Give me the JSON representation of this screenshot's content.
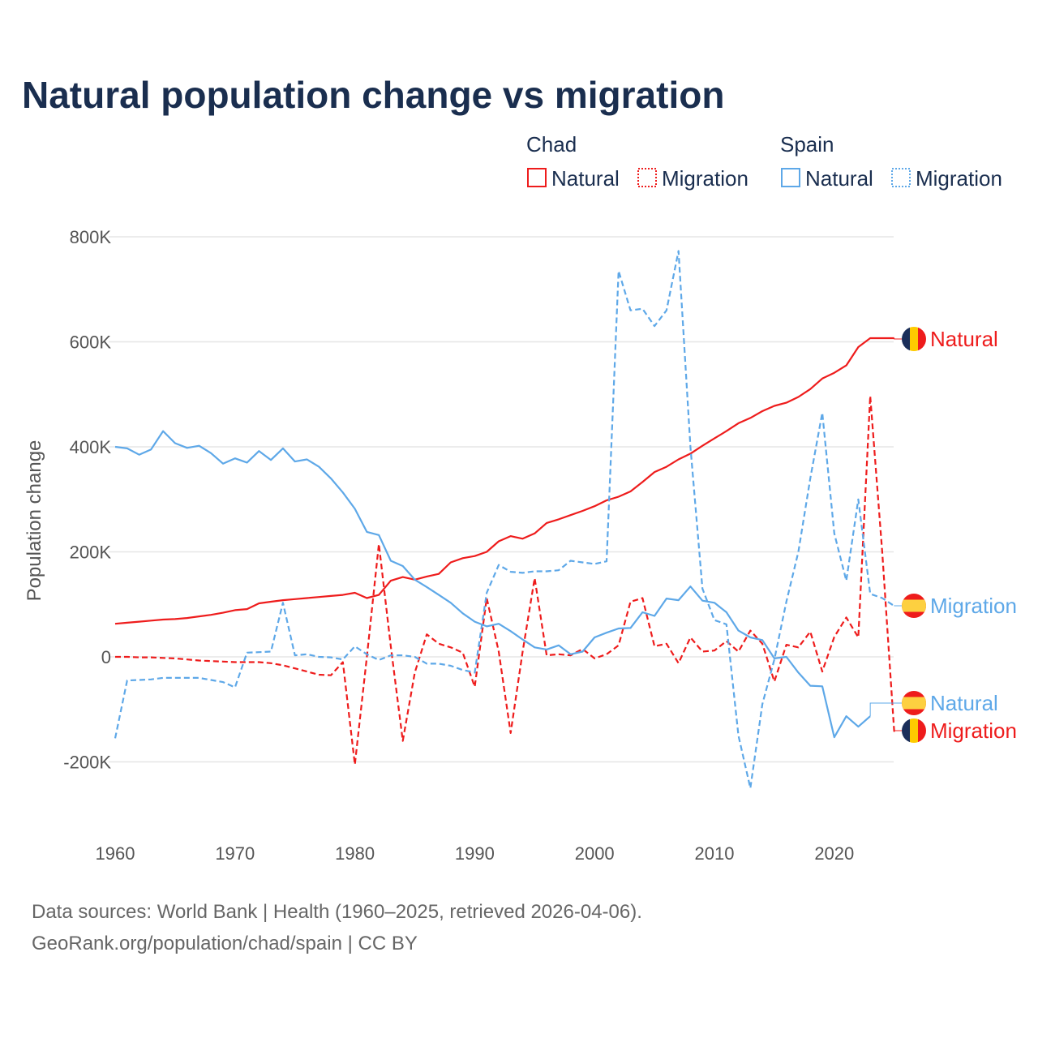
{
  "chart_data": {
    "type": "line",
    "title": "Natural population change vs migration",
    "ylabel": "Population change",
    "xlabel": "",
    "ylim": [
      -300000,
      800000
    ],
    "xlim": [
      1960,
      2025
    ],
    "y_ticks": [
      -200000,
      0,
      200000,
      400000,
      600000,
      800000
    ],
    "y_tick_labels": [
      "-200K",
      "0",
      "200K",
      "400K",
      "600K",
      "800K"
    ],
    "x_ticks": [
      1960,
      1970,
      1980,
      1990,
      2000,
      2010,
      2020
    ],
    "x_tick_labels": [
      "1960",
      "1970",
      "1980",
      "1990",
      "2000",
      "2010",
      "2020"
    ],
    "grid": true,
    "legend_placement": "top-right",
    "legend_groups": [
      {
        "name": "Chad",
        "items": [
          "Natural",
          "Migration"
        ]
      },
      {
        "name": "Spain",
        "items": [
          "Natural",
          "Migration"
        ]
      }
    ],
    "series": [
      {
        "name": "Chad Natural",
        "country": "Chad",
        "kind": "Natural",
        "label": "Natural",
        "color": "#ee1c1c",
        "dashed": false,
        "start_year": 1960,
        "values": [
          63,
          65,
          67,
          69,
          71,
          72,
          74,
          77,
          80,
          84,
          89,
          91,
          102,
          105,
          108,
          110,
          112,
          114,
          116,
          118,
          122,
          112,
          118,
          145,
          152,
          147,
          153,
          158,
          180,
          188,
          192,
          200,
          220,
          230,
          225,
          235,
          255,
          262,
          270,
          278,
          287,
          298,
          305,
          315,
          333,
          352,
          362,
          376,
          387,
          402,
          416,
          430,
          445,
          455,
          468,
          478,
          484,
          495,
          510,
          530,
          541,
          555,
          590,
          607,
          607,
          607
        ]
      },
      {
        "name": "Chad Migration",
        "country": "Chad",
        "kind": "Migration",
        "label": "Migration",
        "color": "#ee1c1c",
        "dashed": true,
        "start_year": 1960,
        "values": [
          0,
          0,
          -1,
          -1,
          -2,
          -3,
          -5,
          -7,
          -8,
          -9,
          -10,
          -10,
          -10,
          -12,
          -16,
          -22,
          -28,
          -34,
          -35,
          -10,
          -205,
          0,
          215,
          20,
          -160,
          -30,
          43,
          25,
          18,
          8,
          -57,
          112,
          10,
          -145,
          10,
          150,
          3,
          5,
          3,
          15,
          -3,
          5,
          22,
          105,
          112,
          20,
          25,
          -12,
          37,
          10,
          12,
          30,
          10,
          50,
          25,
          -47,
          23,
          18,
          48,
          -28,
          38,
          75,
          37,
          497,
          200,
          -143
        ]
      },
      {
        "name": "Spain Natural",
        "country": "Spain",
        "kind": "Natural",
        "label": "Natural",
        "color": "#5ea8e8",
        "dashed": false,
        "start_year": 1960,
        "values": [
          400,
          397,
          385,
          395,
          430,
          407,
          398,
          402,
          388,
          368,
          378,
          370,
          392,
          375,
          397,
          372,
          376,
          362,
          340,
          313,
          282,
          238,
          232,
          183,
          173,
          147,
          133,
          118,
          103,
          83,
          67,
          58,
          63,
          49,
          33,
          18,
          14,
          22,
          5,
          10,
          37,
          46,
          54,
          55,
          85,
          78,
          111,
          108,
          134,
          107,
          103,
          85,
          50,
          37,
          32,
          -3,
          0,
          -30,
          -55,
          -56,
          -153,
          -113,
          -133,
          -113
        ]
      },
      {
        "name": "Spain Migration",
        "country": "Spain",
        "kind": "Migration",
        "label": "Migration",
        "color": "#5ea8e8",
        "dashed": true,
        "start_year": 1960,
        "values": [
          -155,
          -45,
          -44,
          -43,
          -40,
          -40,
          -40,
          -40,
          -44,
          -48,
          -58,
          8,
          9,
          10,
          103,
          3,
          5,
          0,
          -1,
          -5,
          20,
          5,
          -6,
          3,
          3,
          0,
          -13,
          -13,
          -17,
          -25,
          -30,
          122,
          175,
          162,
          160,
          163,
          163,
          165,
          183,
          180,
          177,
          182,
          735,
          660,
          663,
          630,
          660,
          773,
          400,
          130,
          70,
          62,
          -150,
          -250,
          -90,
          -5,
          105,
          200,
          340,
          465,
          235,
          145,
          300,
          120,
          112,
          97
        ]
      }
    ],
    "value_unit": "thousands",
    "source_lines": [
      "Data sources: World Bank | Health (1960–2025, retrieved 2026-04-06).",
      "GeoRank.org/population/chad/spain | CC BY"
    ]
  },
  "colors": {
    "chad": "#ee1c1c",
    "spain": "#5ea8e8",
    "title": "#1a2e4f"
  }
}
